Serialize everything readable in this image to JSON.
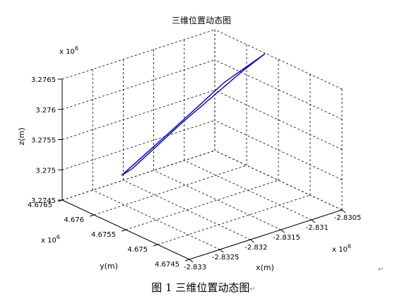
{
  "chart_data": {
    "type": "line3d",
    "title": "三维位置动态图",
    "xlabel": "x(m)",
    "ylabel": "y(m)",
    "zlabel": "z(m)",
    "x_multiplier": "x 10",
    "x_multiplier_exp": "6",
    "y_multiplier": "x 10",
    "y_multiplier_exp": "6",
    "z_multiplier": "x 10",
    "z_multiplier_exp": "6",
    "xlim": [
      -2.833,
      -2.8305
    ],
    "ylim": [
      4.6745,
      4.6765
    ],
    "zlim": [
      3.2745,
      3.2765
    ],
    "x_ticks": [
      -2.833,
      -2.8325,
      -2.832,
      -2.8315,
      -2.831,
      -2.8305
    ],
    "x_tick_labels": [
      "-2.833",
      "-2.8325",
      "-2.832",
      "-2.8315",
      "-2.831",
      "-2.8305"
    ],
    "y_ticks": [
      4.6745,
      4.675,
      4.6755,
      4.676,
      4.6765
    ],
    "y_tick_labels": [
      "4.6745",
      "4.675",
      "4.6755",
      "4.676",
      "4.6765"
    ],
    "z_ticks": [
      3.2745,
      3.275,
      3.2755,
      3.276,
      3.2765
    ],
    "z_tick_labels": [
      "3.2745",
      "3.275",
      "3.2755",
      "3.276",
      "3.2765"
    ],
    "grid": true,
    "series": [
      {
        "color": "#0000cc",
        "points": [
          [
            -2.83208,
            4.67645,
            3.27463
          ],
          [
            -2.83158,
            4.67615,
            3.27535
          ],
          [
            -2.83102,
            4.67585,
            3.27612
          ],
          [
            -2.83062,
            4.6756,
            3.27658
          ],
          [
            -2.83085,
            4.67572,
            3.27632
          ],
          [
            -2.8315,
            4.67606,
            3.2755
          ],
          [
            -2.832,
            4.67636,
            3.27476
          ],
          [
            -2.83208,
            4.67645,
            3.27463
          ]
        ]
      }
    ]
  },
  "caption": "图 1  三维位置动态图",
  "return_mark": "↵"
}
